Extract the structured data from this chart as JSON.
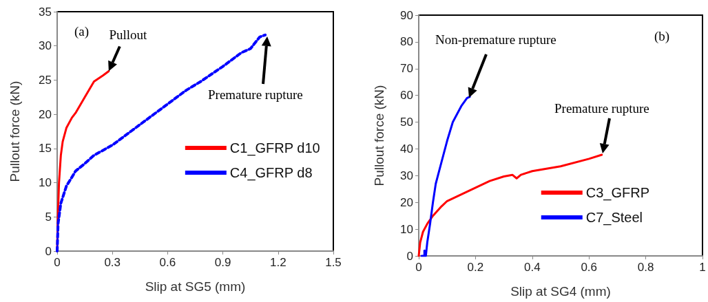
{
  "chart_data": [
    {
      "type": "line",
      "xlabel": "Slip at SG5 (mm)",
      "ylabel": "Pullout force (kN)",
      "xlim": [
        0,
        1.5
      ],
      "xticks": [
        0,
        0.3,
        0.6,
        0.9,
        1.2,
        1.5
      ],
      "ylim": [
        0,
        35
      ],
      "yticks": [
        0,
        5,
        10,
        15,
        20,
        25,
        30,
        35
      ],
      "grid": false,
      "legend": "right",
      "marker": "none",
      "annotations": [
        "(a)",
        {
          "text": "Pullout",
          "x": 0.28,
          "y": 26.3
        },
        "Premature rupture"
      ],
      "series": [
        {
          "name": "C1_GFRP d10",
          "color": "#ff0000",
          "line_style": "solid",
          "x": [
            0,
            0.002,
            0.005,
            0.01,
            0.02,
            0.03,
            0.05,
            0.08,
            0.1,
            0.15,
            0.2,
            0.25,
            0.28
          ],
          "values": [
            0,
            3,
            6,
            10,
            14,
            16,
            18,
            19.5,
            20.2,
            22.5,
            24.8,
            25.7,
            26.3
          ]
        },
        {
          "name": "C4_GFRP d8",
          "color": "#0000ff",
          "line_style": "dashed",
          "x": [
            0,
            0.005,
            0.02,
            0.05,
            0.08,
            0.1,
            0.15,
            0.2,
            0.3,
            0.4,
            0.5,
            0.6,
            0.7,
            0.78,
            0.9,
            1.0,
            1.05,
            1.1,
            1.13
          ],
          "values": [
            0,
            4,
            7,
            9.5,
            10.8,
            11.7,
            12.8,
            14,
            15.5,
            17.5,
            19.5,
            21.5,
            23.5,
            24.8,
            27,
            29,
            29.6,
            31.3,
            31.6
          ]
        }
      ]
    },
    {
      "type": "line",
      "xlabel": "Slip at SG4 (mm)",
      "ylabel": "Pullout force (kN)",
      "xlim": [
        0,
        1
      ],
      "xticks": [
        0,
        0.2,
        0.4,
        0.6,
        0.8,
        1
      ],
      "ylim": [
        0,
        90
      ],
      "yticks": [
        0,
        10,
        20,
        30,
        40,
        50,
        60,
        70,
        80,
        90
      ],
      "grid": false,
      "legend": "bottom right",
      "marker": "none",
      "annotations": [
        "(b)",
        "Non-premature rupture",
        "Premature rupture"
      ],
      "series": [
        {
          "name": "C3_GFRP",
          "color": "#ff0000",
          "line_style": "solid",
          "x": [
            0,
            0.005,
            0.015,
            0.03,
            0.05,
            0.08,
            0.1,
            0.15,
            0.2,
            0.25,
            0.3,
            0.33,
            0.345,
            0.36,
            0.4,
            0.5,
            0.6,
            0.645
          ],
          "values": [
            0,
            5,
            9,
            12,
            15,
            18.5,
            20.5,
            23,
            25.5,
            28,
            29.7,
            30.3,
            29,
            30.3,
            31.7,
            33.5,
            36.3,
            37.8
          ]
        },
        {
          "name": "C7_Steel",
          "color": "#0000ff",
          "line_style": "solid",
          "x": [
            0.01,
            0.02,
            0.02,
            0.025,
            0.03,
            0.04,
            0.05,
            0.06,
            0.08,
            0.1,
            0.12,
            0.15,
            0.17,
            0.18
          ],
          "values": [
            0,
            0,
            2,
            0,
            5,
            12,
            20,
            27,
            35,
            43,
            50,
            56,
            59,
            59.5
          ]
        }
      ]
    }
  ]
}
